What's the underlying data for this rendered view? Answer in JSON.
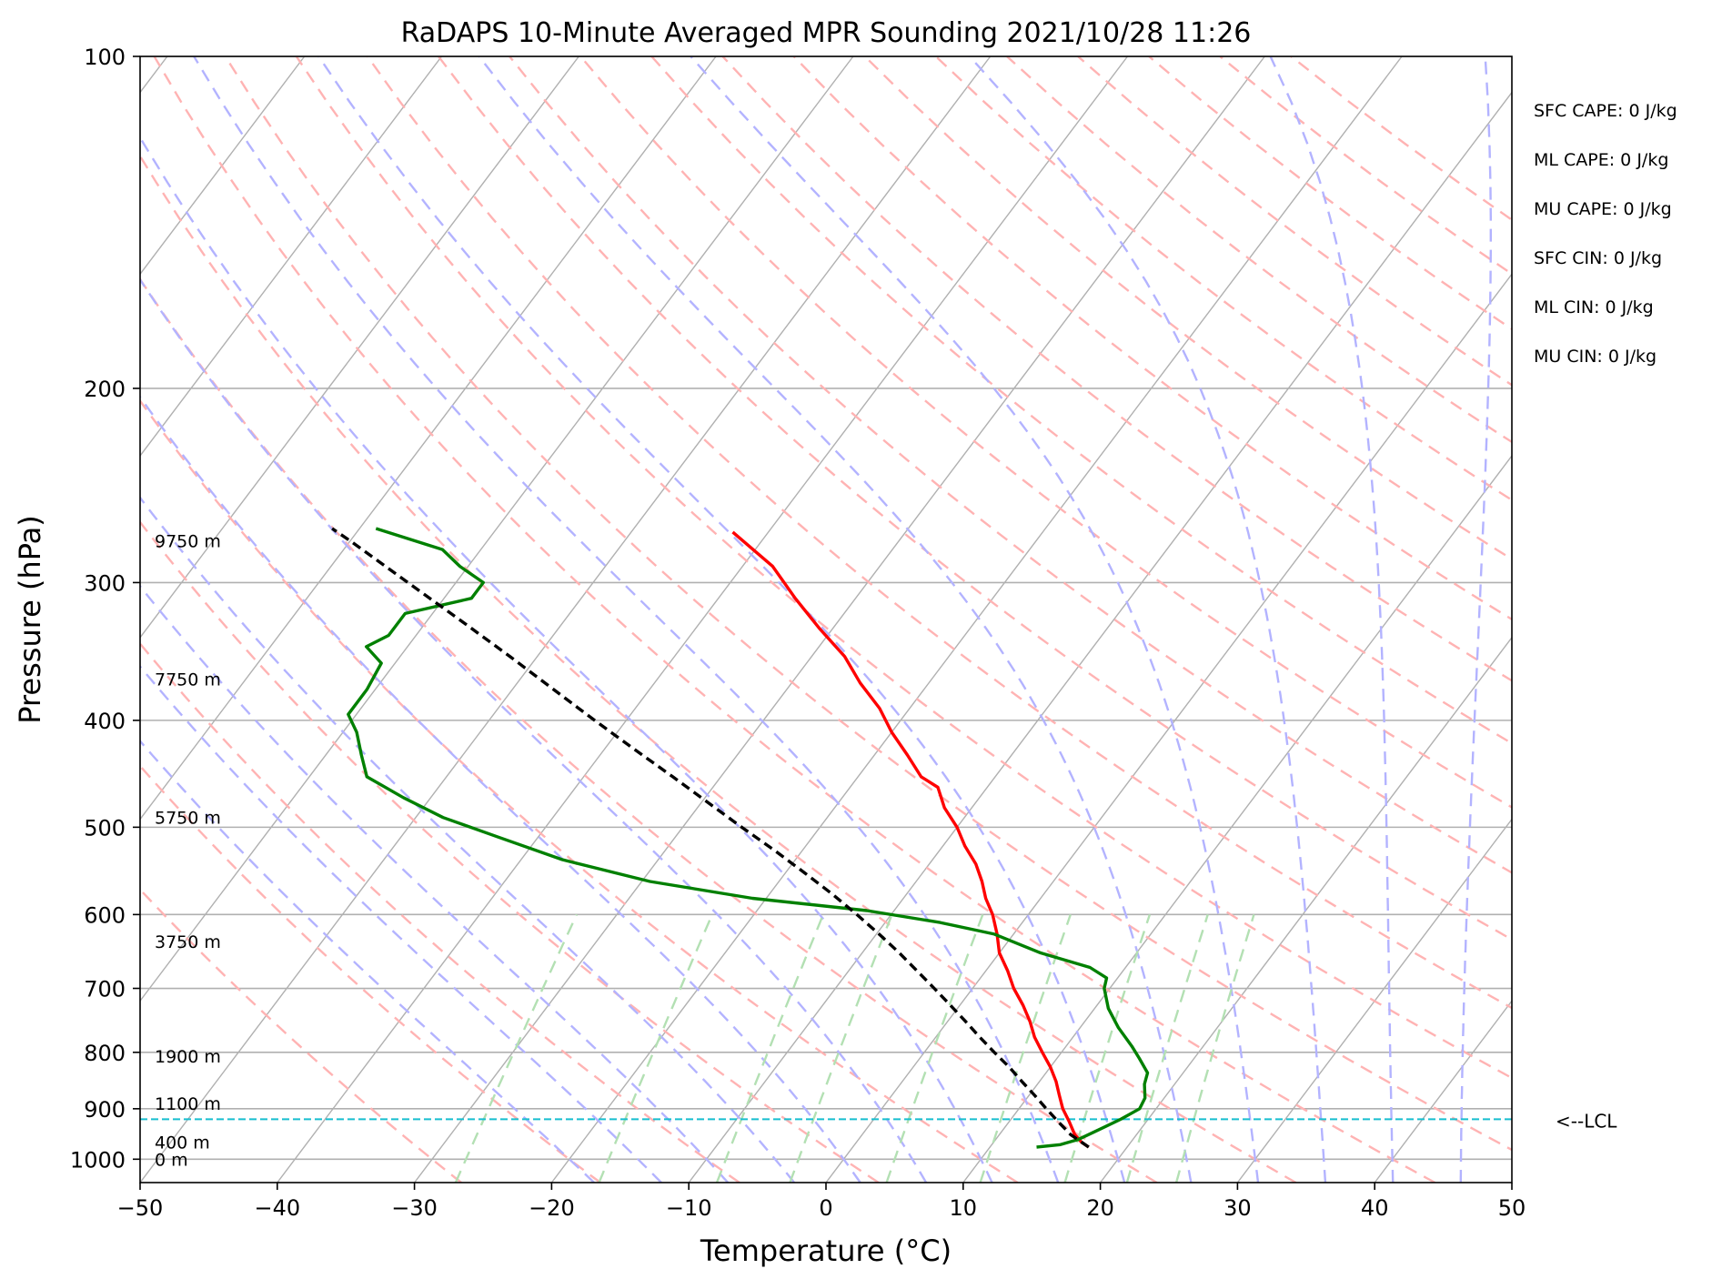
{
  "chart_data": {
    "type": "skew-t",
    "title": "RaDAPS 10-Minute Averaged MPR Sounding 2021/10/28 11:26",
    "xlabel": "Temperature (°C)",
    "ylabel": "Pressure (hPa)",
    "xlim": [
      -50,
      50
    ],
    "ylim": [
      1050,
      100
    ],
    "y_scale": "log",
    "grid": true,
    "x_ticks": [
      "−50",
      "−40",
      "−30",
      "−20",
      "−10",
      "0",
      "10",
      "20",
      "30",
      "40",
      "50"
    ],
    "y_ticks": [
      "100",
      "200",
      "300",
      "400",
      "500",
      "600",
      "700",
      "800",
      "900",
      "1000"
    ],
    "height_labels": [
      {
        "label": "9750 m",
        "p": 275
      },
      {
        "label": "7750 m",
        "p": 367
      },
      {
        "label": "5750 m",
        "p": 490
      },
      {
        "label": "3750 m",
        "p": 635
      },
      {
        "label": "1900 m",
        "p": 806
      },
      {
        "label": "1100 m",
        "p": 890
      },
      {
        "label": "400 m",
        "p": 965
      },
      {
        "label": "0 m",
        "p": 1000
      }
    ],
    "stats": [
      "SFC CAPE: 0 J/kg",
      "ML CAPE: 0 J/kg",
      "MU CAPE: 0 J/kg",
      "SFC CIN: 0 J/kg",
      "ML CIN: 0 J/kg",
      "MU CIN: 0 J/kg"
    ],
    "lcl": {
      "label": "<--LCL",
      "p": 920
    },
    "series": [
      {
        "role": "temperature",
        "color": "#ff0000",
        "style": "solid",
        "points": [
          [
            17.2,
            975
          ],
          [
            16.4,
            965
          ],
          [
            15.5,
            950
          ],
          [
            14.4,
            925
          ],
          [
            13.2,
            900
          ],
          [
            12.2,
            875
          ],
          [
            11.2,
            850
          ],
          [
            10.0,
            825
          ],
          [
            8.6,
            800
          ],
          [
            7.2,
            775
          ],
          [
            6.0,
            750
          ],
          [
            4.6,
            725
          ],
          [
            3.0,
            700
          ],
          [
            1.6,
            675
          ],
          [
            0.0,
            650
          ],
          [
            -1.2,
            625
          ],
          [
            -2.6,
            600
          ],
          [
            -4.0,
            580
          ],
          [
            -5.2,
            560
          ],
          [
            -6.6,
            540
          ],
          [
            -8.4,
            520
          ],
          [
            -10.0,
            500
          ],
          [
            -12.0,
            480
          ],
          [
            -13.6,
            460
          ],
          [
            -15.4,
            450
          ],
          [
            -17.6,
            430
          ],
          [
            -20.0,
            410
          ],
          [
            -22.2,
            390
          ],
          [
            -25.0,
            370
          ],
          [
            -27.6,
            350
          ],
          [
            -31.0,
            330
          ],
          [
            -34.4,
            310
          ],
          [
            -37.8,
            290
          ],
          [
            -42.6,
            270
          ]
        ]
      },
      {
        "role": "dewpoint",
        "color": "#008000",
        "style": "solid",
        "points": [
          [
            13.4,
            975
          ],
          [
            15.0,
            970
          ],
          [
            16.0,
            960
          ],
          [
            17.0,
            940
          ],
          [
            18.0,
            920
          ],
          [
            18.8,
            900
          ],
          [
            18.6,
            880
          ],
          [
            17.8,
            855
          ],
          [
            17.4,
            835
          ],
          [
            16.0,
            810
          ],
          [
            14.8,
            790
          ],
          [
            12.8,
            760
          ],
          [
            11.0,
            730
          ],
          [
            9.6,
            700
          ],
          [
            9.2,
            685
          ],
          [
            7.4,
            670
          ],
          [
            3.0,
            650
          ],
          [
            -1.4,
            625
          ],
          [
            -6.0,
            610
          ],
          [
            -12.0,
            595
          ],
          [
            -21.0,
            580
          ],
          [
            -29.4,
            560
          ],
          [
            -37.0,
            535
          ],
          [
            -43.0,
            510
          ],
          [
            -48.0,
            490
          ],
          [
            -52.0,
            470
          ],
          [
            -55.8,
            450
          ],
          [
            -57.4,
            430
          ],
          [
            -59.0,
            410
          ],
          [
            -60.6,
            395
          ],
          [
            -60.6,
            375
          ],
          [
            -61.0,
            355
          ],
          [
            -63.0,
            343
          ],
          [
            -62.0,
            335
          ],
          [
            -62.0,
            320
          ],
          [
            -58.0,
            310
          ],
          [
            -58.0,
            300
          ],
          [
            -60.6,
            290
          ],
          [
            -62.8,
            280
          ],
          [
            -68.8,
            268
          ]
        ]
      },
      {
        "role": "parcel",
        "color": "#000000",
        "style": "dashed",
        "points": [
          [
            17.2,
            975
          ],
          [
            15.2,
            950
          ],
          [
            13.6,
            925
          ],
          [
            12.0,
            900
          ],
          [
            10.4,
            875
          ],
          [
            8.7,
            850
          ],
          [
            7.0,
            825
          ],
          [
            5.1,
            800
          ],
          [
            3.2,
            775
          ],
          [
            1.3,
            750
          ],
          [
            -0.7,
            725
          ],
          [
            -2.8,
            700
          ],
          [
            -5.0,
            675
          ],
          [
            -7.3,
            650
          ],
          [
            -9.8,
            625
          ],
          [
            -12.5,
            600
          ],
          [
            -15.4,
            575
          ],
          [
            -18.6,
            550
          ],
          [
            -22.0,
            525
          ],
          [
            -25.7,
            500
          ],
          [
            -29.5,
            475
          ],
          [
            -33.5,
            450
          ],
          [
            -37.8,
            425
          ],
          [
            -42.3,
            400
          ],
          [
            -47.0,
            375
          ],
          [
            -52.0,
            350
          ],
          [
            -57.5,
            325
          ],
          [
            -63.5,
            300
          ],
          [
            -70.0,
            275
          ],
          [
            -72.0,
            268
          ]
        ]
      }
    ],
    "background_lines": {
      "isotherms": {
        "color": "#b0b0b0",
        "style": "solid"
      },
      "dry_adiabats": {
        "color": "#ffb3b3",
        "style": "dashed"
      },
      "moist_adiabats": {
        "color": "#b3b3ff",
        "style": "dashed"
      },
      "mixing_ratio": {
        "color": "#b3e0b3",
        "style": "dashed"
      }
    }
  }
}
